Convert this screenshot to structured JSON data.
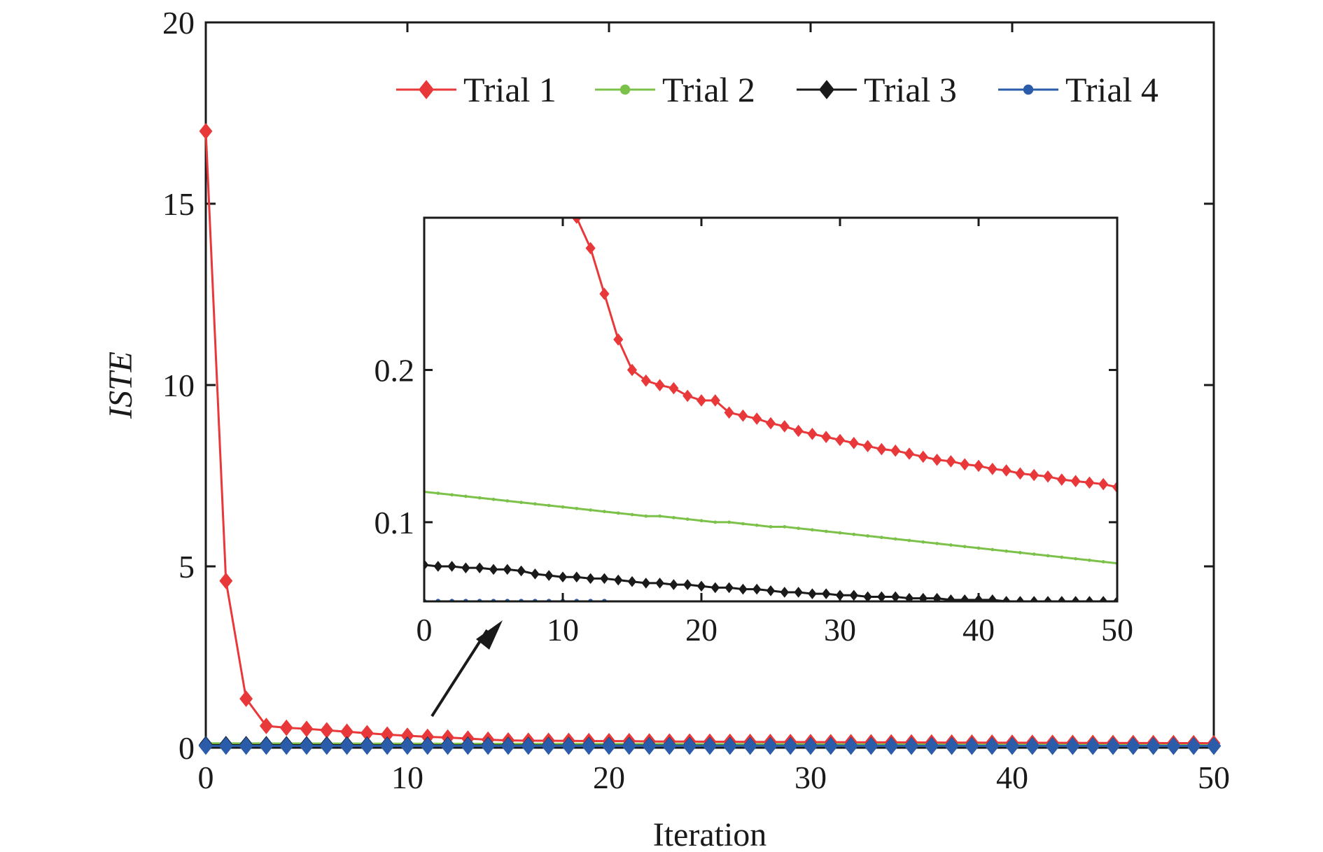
{
  "chart_data": {
    "type": "line",
    "xlabel": "Iteration",
    "ylabel": "ISTE",
    "xlim": [
      0,
      50
    ],
    "ylim": [
      0,
      20
    ],
    "x_ticks": [
      "0",
      "10",
      "20",
      "30",
      "40",
      "50"
    ],
    "y_ticks": [
      "0",
      "5",
      "10",
      "15",
      "20"
    ],
    "grid": false,
    "legend_position": "top-right",
    "legend_labels": [
      "Trial 1",
      "Trial 2",
      "Trial 3",
      "Trial 4"
    ],
    "x": [
      0,
      1,
      2,
      3,
      4,
      5,
      6,
      7,
      8,
      9,
      10,
      11,
      12,
      13,
      14,
      15,
      16,
      17,
      18,
      19,
      20,
      21,
      22,
      23,
      24,
      25,
      26,
      27,
      28,
      29,
      30,
      31,
      32,
      33,
      34,
      35,
      36,
      37,
      38,
      39,
      40,
      41,
      42,
      43,
      44,
      45,
      46,
      47,
      48,
      49,
      50
    ],
    "series": [
      {
        "name": "Trial 1",
        "color": "#e8383a",
        "marker": "diamond",
        "values": [
          17.0,
          4.6,
          1.35,
          0.6,
          0.55,
          0.52,
          0.48,
          0.44,
          0.4,
          0.36,
          0.33,
          0.3,
          0.28,
          0.25,
          0.22,
          0.2,
          0.193,
          0.19,
          0.188,
          0.183,
          0.18,
          0.18,
          0.172,
          0.17,
          0.168,
          0.165,
          0.163,
          0.16,
          0.158,
          0.156,
          0.154,
          0.152,
          0.15,
          0.148,
          0.147,
          0.145,
          0.143,
          0.141,
          0.14,
          0.138,
          0.137,
          0.135,
          0.134,
          0.132,
          0.131,
          0.13,
          0.128,
          0.127,
          0.126,
          0.125,
          0.123
        ]
      },
      {
        "name": "Trial 2",
        "color": "#7cc24a",
        "marker": "dot",
        "values": [
          0.12,
          0.119,
          0.118,
          0.117,
          0.116,
          0.115,
          0.114,
          0.113,
          0.112,
          0.111,
          0.11,
          0.109,
          0.108,
          0.107,
          0.106,
          0.105,
          0.104,
          0.104,
          0.103,
          0.102,
          0.101,
          0.1,
          0.1,
          0.099,
          0.098,
          0.097,
          0.097,
          0.096,
          0.095,
          0.094,
          0.093,
          0.092,
          0.091,
          0.09,
          0.089,
          0.088,
          0.087,
          0.086,
          0.085,
          0.084,
          0.083,
          0.082,
          0.081,
          0.08,
          0.079,
          0.078,
          0.077,
          0.076,
          0.075,
          0.074,
          0.073
        ]
      },
      {
        "name": "Trial 3",
        "color": "#1a1a1a",
        "marker": "diamond",
        "values": [
          0.072,
          0.071,
          0.071,
          0.07,
          0.07,
          0.069,
          0.069,
          0.068,
          0.066,
          0.065,
          0.064,
          0.064,
          0.063,
          0.063,
          0.062,
          0.061,
          0.06,
          0.06,
          0.059,
          0.059,
          0.058,
          0.057,
          0.057,
          0.056,
          0.056,
          0.055,
          0.054,
          0.054,
          0.053,
          0.053,
          0.052,
          0.052,
          0.051,
          0.051,
          0.051,
          0.05,
          0.05,
          0.05,
          0.049,
          0.049,
          0.049,
          0.049,
          0.048,
          0.048,
          0.048,
          0.048,
          0.048,
          0.048,
          0.048,
          0.048,
          0.048
        ]
      },
      {
        "name": "Trial 4",
        "color": "#2a5caa",
        "marker": "dot",
        "values": [
          0.048,
          0.048,
          0.048,
          0.048,
          0.048,
          0.048,
          0.048,
          0.048,
          0.048,
          0.048,
          0.048,
          0.048,
          0.048,
          0.048,
          0.048,
          0.048,
          0.048,
          0.048,
          0.048,
          0.048,
          0.048,
          0.048,
          0.048,
          0.048,
          0.048,
          0.048,
          0.048,
          0.048,
          0.048,
          0.048,
          0.048,
          0.048,
          0.048,
          0.048,
          0.048,
          0.048,
          0.048,
          0.048,
          0.048,
          0.048,
          0.048,
          0.048,
          0.048,
          0.048,
          0.048,
          0.048,
          0.048,
          0.048,
          0.048,
          0.048,
          0.048
        ]
      }
    ],
    "inset": {
      "xlim": [
        0,
        50
      ],
      "ylim": [
        0.048,
        0.3
      ],
      "x_ticks": [
        "0",
        "10",
        "20",
        "30",
        "40",
        "50"
      ],
      "y_ticks": [
        "0.1",
        "0.2"
      ],
      "trial4_visible_until_x": 13
    },
    "annotation": {
      "type": "arrow",
      "description_points_to": "inset"
    }
  }
}
